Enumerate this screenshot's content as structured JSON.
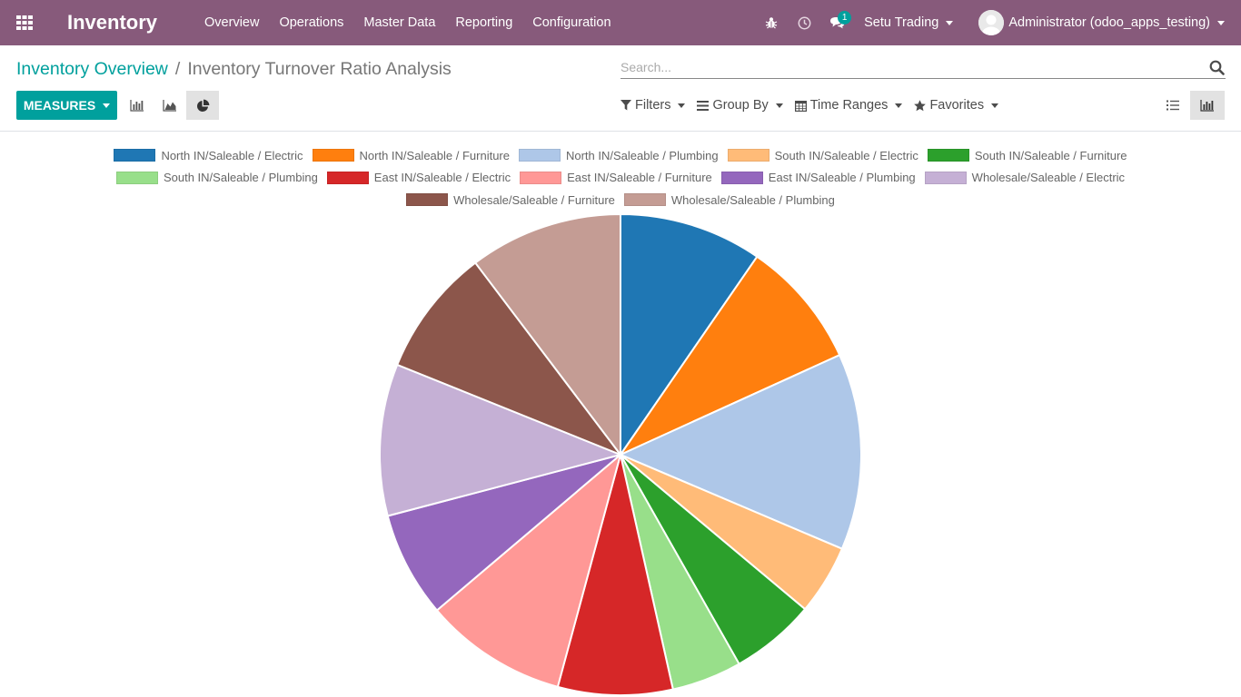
{
  "navbar": {
    "app_title": "Inventory",
    "menu": [
      "Overview",
      "Operations",
      "Master Data",
      "Reporting",
      "Configuration"
    ],
    "messages_count": "1",
    "company": "Setu Trading",
    "user": "Administrator (odoo_apps_testing)",
    "icons": [
      "apps-grid-icon",
      "bug-icon",
      "clock-icon",
      "chat-icon"
    ]
  },
  "breadcrumb": {
    "parent": "Inventory Overview",
    "separator": "/",
    "current": "Inventory Turnover Ratio Analysis"
  },
  "search": {
    "placeholder": "Search...",
    "value": ""
  },
  "toolbar": {
    "measures_label": "MEASURES",
    "filters_label": "Filters",
    "group_by_label": "Group By",
    "time_ranges_label": "Time Ranges",
    "favorites_label": "Favorites"
  },
  "colors": {
    "navbar": "#875a7b",
    "accent": "#00a09d"
  },
  "chart_data": {
    "type": "pie",
    "legend_position": "top",
    "series": [
      {
        "name": "North IN/Saleable / Electric",
        "value": 9.6,
        "color": "#1f77b4"
      },
      {
        "name": "North IN/Saleable / Furniture",
        "value": 8.6,
        "color": "#ff7f0e"
      },
      {
        "name": "North IN/Saleable / Plumbing",
        "value": 13.2,
        "color": "#aec7e8"
      },
      {
        "name": "South IN/Saleable / Electric",
        "value": 4.7,
        "color": "#ffbb78"
      },
      {
        "name": "South IN/Saleable / Furniture",
        "value": 5.7,
        "color": "#2ca02c"
      },
      {
        "name": "South IN/Saleable / Plumbing",
        "value": 4.7,
        "color": "#98df8a"
      },
      {
        "name": "East IN/Saleable / Electric",
        "value": 7.7,
        "color": "#d62728"
      },
      {
        "name": "East IN/Saleable / Furniture",
        "value": 9.6,
        "color": "#ff9896"
      },
      {
        "name": "East IN/Saleable / Plumbing",
        "value": 7.1,
        "color": "#9467bd"
      },
      {
        "name": "Wholesale/Saleable / Electric",
        "value": 10.2,
        "color": "#c5b0d5"
      },
      {
        "name": "Wholesale/Saleable / Furniture",
        "value": 8.6,
        "color": "#8c564b"
      },
      {
        "name": "Wholesale/Saleable / Plumbing",
        "value": 10.3,
        "color": "#c49c94"
      }
    ]
  }
}
